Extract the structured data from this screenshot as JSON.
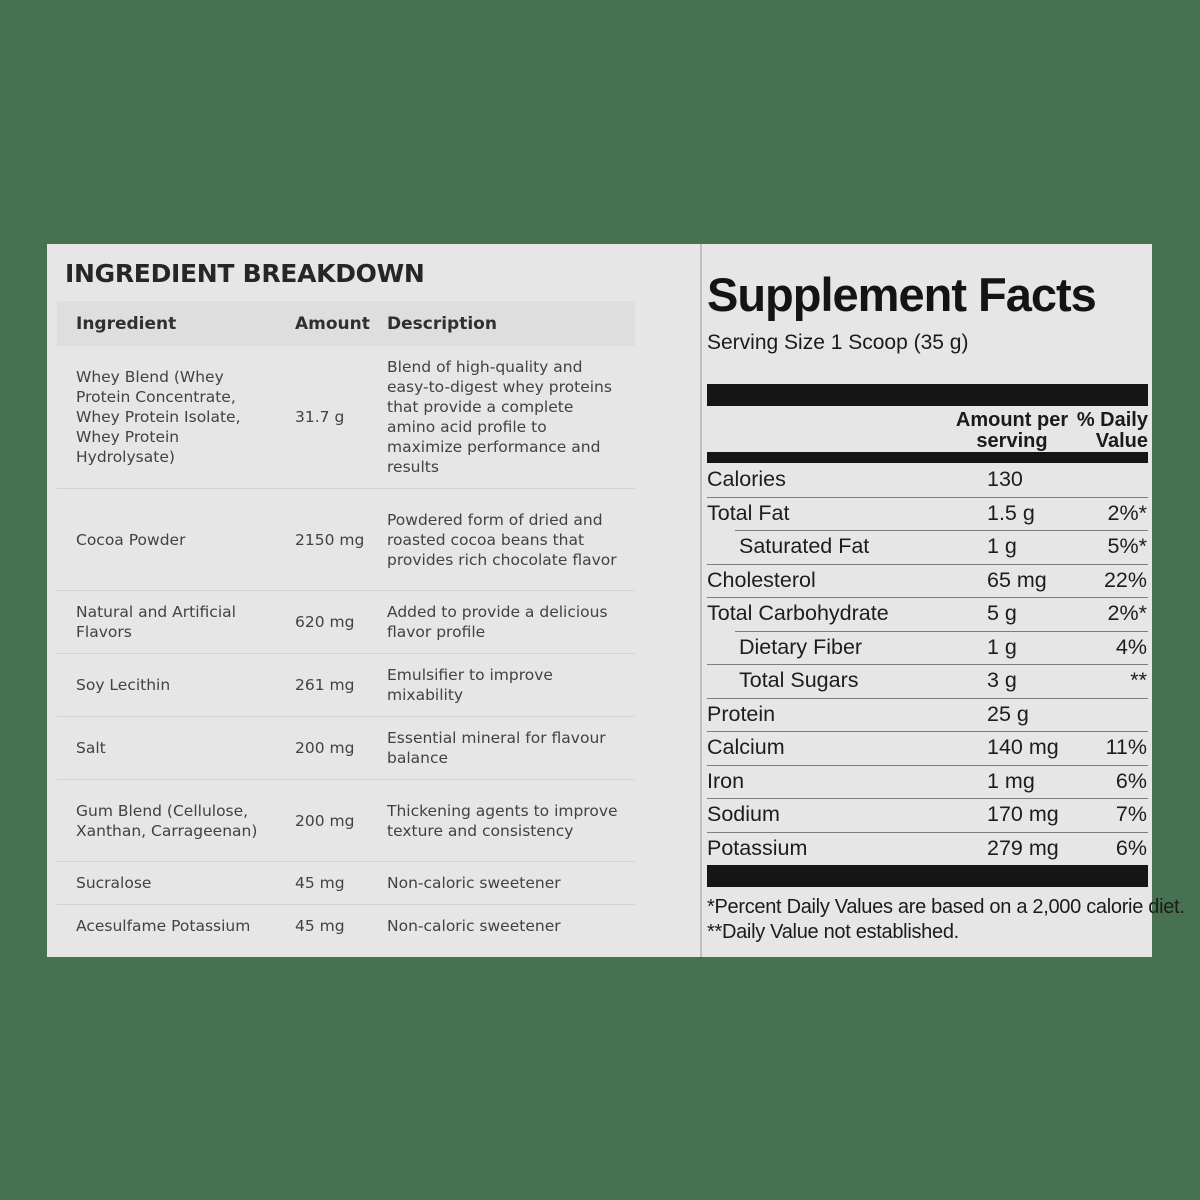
{
  "colors": {
    "background": "#48714F",
    "panel": "#e6e6e6",
    "header_band": "#dedede",
    "bar": "#151515"
  },
  "ingredient_panel": {
    "title": "INGREDIENT BREAKDOWN",
    "columns": {
      "ingredient": "Ingredient",
      "amount": "Amount",
      "description": "Description"
    },
    "rows": [
      {
        "ingredient": "Whey Blend (Whey Protein Concentrate, Whey Protein Isolate, Whey Protein Hydrolysate)",
        "amount": "31.7 g",
        "description": "Blend of high-quality and easy-to-digest whey proteins that provide a complete amino acid profile to maximize performance and results"
      },
      {
        "ingredient": "Cocoa Powder",
        "amount": "2150 mg",
        "description": "Powdered form of dried and roasted cocoa beans that provides rich chocolate flavor"
      },
      {
        "ingredient": "Natural and Artificial Flavors",
        "amount": "620 mg",
        "description": "Added to provide a delicious flavor profile"
      },
      {
        "ingredient": "Soy Lecithin",
        "amount": "261 mg",
        "description": "Emulsifier to improve mixability"
      },
      {
        "ingredient": "Salt",
        "amount": "200 mg",
        "description": "Essential mineral for flavour balance"
      },
      {
        "ingredient": "Gum Blend (Cellulose, Xanthan, Carrageenan)",
        "amount": "200 mg",
        "description": "Thickening agents to improve texture and consistency"
      },
      {
        "ingredient": "Sucralose",
        "amount": "45 mg",
        "description": "Non-caloric sweetener"
      },
      {
        "ingredient": "Acesulfame Potassium",
        "amount": "45 mg",
        "description": "Non-caloric sweetener"
      }
    ]
  },
  "supplement_facts": {
    "title": "Supplement Facts",
    "serving_size": "Serving Size 1 Scoop (35 g)",
    "column_headers": {
      "amount": "Amount per serving",
      "daily_value": "% Daily Value"
    },
    "rows": [
      {
        "label": "Calories",
        "amount": "130",
        "daily_value": "",
        "indent": false,
        "divider": "none"
      },
      {
        "label": "Total Fat",
        "amount": "1.5 g",
        "daily_value": "2%*",
        "indent": false,
        "divider": "full"
      },
      {
        "label": "Saturated Fat",
        "amount": "1 g",
        "daily_value": "5%*",
        "indent": true,
        "divider": "indent"
      },
      {
        "label": "Cholesterol",
        "amount": "65 mg",
        "daily_value": "22%",
        "indent": false,
        "divider": "full"
      },
      {
        "label": "Total Carbohydrate",
        "amount": "5 g",
        "daily_value": "2%*",
        "indent": false,
        "divider": "full"
      },
      {
        "label": "Dietary Fiber",
        "amount": "1 g",
        "daily_value": "4%",
        "indent": true,
        "divider": "indent"
      },
      {
        "label": "Total Sugars",
        "amount": "3 g",
        "daily_value": "**",
        "indent": true,
        "divider": "full"
      },
      {
        "label": "Protein",
        "amount": "25 g",
        "daily_value": "",
        "indent": false,
        "divider": "full"
      },
      {
        "label": "Calcium",
        "amount": "140 mg",
        "daily_value": "11%",
        "indent": false,
        "divider": "full"
      },
      {
        "label": "Iron",
        "amount": "1 mg",
        "daily_value": "6%",
        "indent": false,
        "divider": "full"
      },
      {
        "label": "Sodium",
        "amount": "170 mg",
        "daily_value": "7%",
        "indent": false,
        "divider": "full"
      },
      {
        "label": "Potassium",
        "amount": "279 mg",
        "daily_value": "6%",
        "indent": false,
        "divider": "full"
      }
    ],
    "footnotes": [
      "*Percent Daily Values are based on a 2,000 calorie diet.",
      "**Daily Value not established."
    ]
  }
}
